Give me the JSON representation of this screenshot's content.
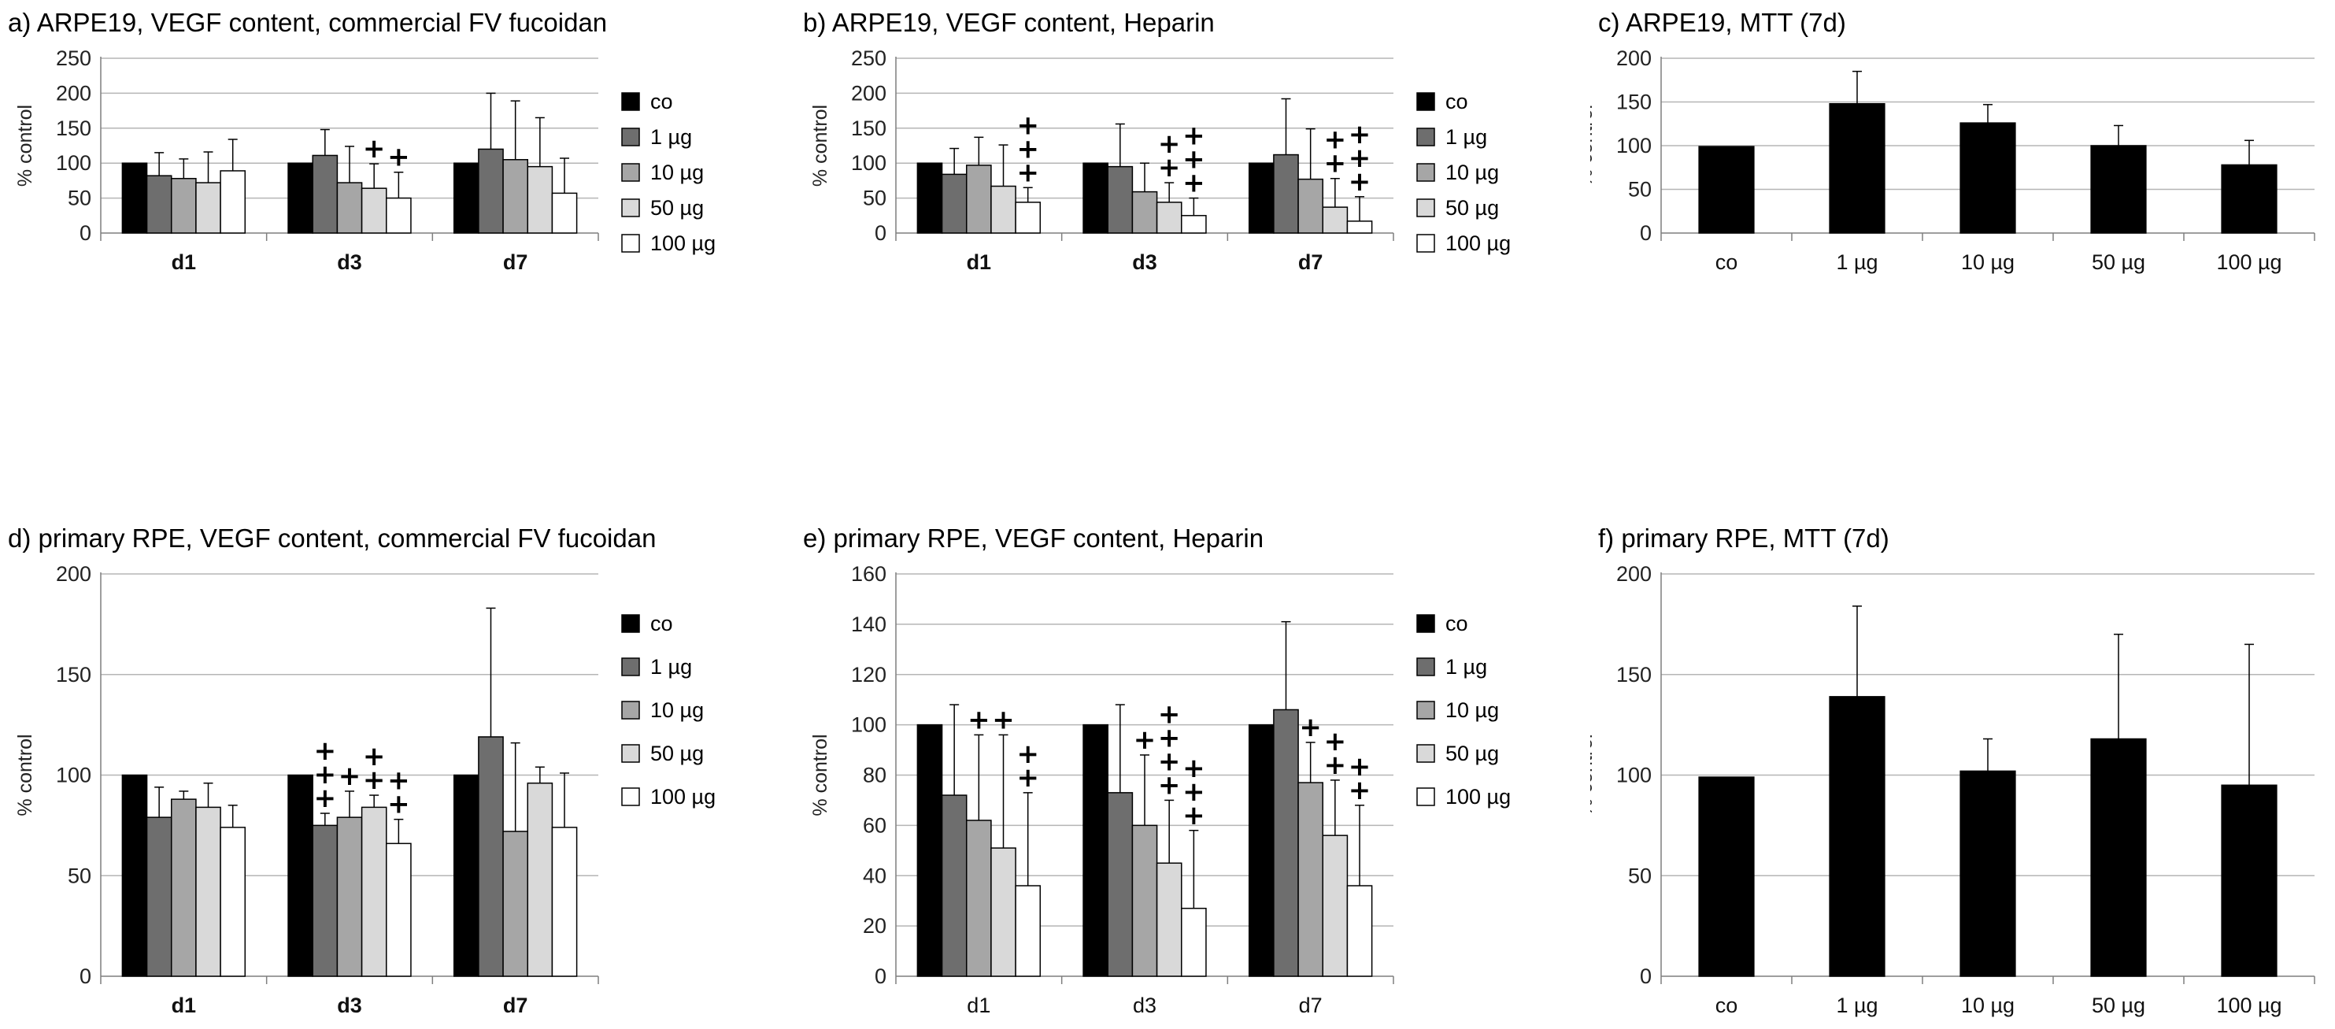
{
  "colors": {
    "co": "#000000",
    "1 µg": "#6e6e6e",
    "10 µg": "#a6a6a6",
    "50 µg": "#d9d9d9",
    "100 µg": "#ffffff",
    "grid": "#b5b5b5",
    "axis": "#7f7f7f"
  },
  "chart_data": [
    {
      "id": "a",
      "type": "bar",
      "title": "a) ARPE19, VEGF content, commercial FV fucoidan",
      "ylabel": "% control",
      "ylim": [
        0,
        250
      ],
      "yticks": [
        "0",
        "50",
        "100",
        "150",
        "200",
        "250"
      ],
      "categories": [
        "d1",
        "d3",
        "d7"
      ],
      "category_bold": true,
      "legend": [
        "co",
        "1 µg",
        "10 µg",
        "50 µg",
        "100 µg"
      ],
      "series": [
        {
          "name": "co",
          "values": [
            100,
            100,
            100
          ],
          "errors": [
            0,
            0,
            0
          ]
        },
        {
          "name": "1 µg",
          "values": [
            82,
            111,
            120
          ],
          "errors": [
            33,
            37,
            80
          ]
        },
        {
          "name": "10 µg",
          "values": [
            78,
            72,
            105
          ],
          "errors": [
            28,
            52,
            84
          ]
        },
        {
          "name": "50 µg",
          "values": [
            72,
            64,
            95
          ],
          "errors": [
            44,
            35,
            70
          ]
        },
        {
          "name": "100 µg",
          "values": [
            89,
            50,
            57
          ],
          "errors": [
            45,
            37,
            50
          ]
        }
      ],
      "annotations": [
        {
          "category": 1,
          "series": 3,
          "text": [
            "+"
          ]
        },
        {
          "category": 1,
          "series": 4,
          "text": [
            "+"
          ]
        }
      ]
    },
    {
      "id": "b",
      "type": "bar",
      "title": "b) ARPE19, VEGF content, Heparin",
      "ylabel": "% control",
      "ylim": [
        0,
        250
      ],
      "yticks": [
        "0",
        "50",
        "100",
        "150",
        "200",
        "250"
      ],
      "categories": [
        "d1",
        "d3",
        "d7"
      ],
      "category_bold": true,
      "legend": [
        "co",
        "1 µg",
        "10 µg",
        "50 µg",
        "100 µg"
      ],
      "series": [
        {
          "name": "co",
          "values": [
            100,
            100,
            100
          ],
          "errors": [
            0,
            0,
            0
          ]
        },
        {
          "name": "1 µg",
          "values": [
            84,
            95,
            112
          ],
          "errors": [
            37,
            61,
            80
          ]
        },
        {
          "name": "10 µg",
          "values": [
            97,
            59,
            77
          ],
          "errors": [
            40,
            41,
            72
          ]
        },
        {
          "name": "50 µg",
          "values": [
            67,
            44,
            37
          ],
          "errors": [
            59,
            28,
            41
          ]
        },
        {
          "name": "100 µg",
          "values": [
            44,
            25,
            17
          ],
          "errors": [
            21,
            25,
            35
          ]
        }
      ],
      "annotations": [
        {
          "category": 0,
          "series": 4,
          "text": [
            "+",
            "+",
            "+"
          ]
        },
        {
          "category": 1,
          "series": 3,
          "text": [
            "+",
            "+"
          ]
        },
        {
          "category": 1,
          "series": 4,
          "text": [
            "+",
            "+",
            "+"
          ]
        },
        {
          "category": 2,
          "series": 3,
          "text": [
            "+",
            "+"
          ]
        },
        {
          "category": 2,
          "series": 4,
          "text": [
            "+",
            "+",
            "+"
          ]
        }
      ]
    },
    {
      "id": "c",
      "type": "bar",
      "title": "c) ARPE19, MTT (7d)",
      "ylabel": "% control",
      "ylim": [
        0,
        200
      ],
      "yticks": [
        "0",
        "50",
        "100",
        "150",
        "200"
      ],
      "categories": [
        "co",
        "1 µg",
        "10 µg",
        "50 µg",
        "100 µg"
      ],
      "category_bold": false,
      "legend": [],
      "series": [
        {
          "name": "MTT",
          "values": [
            99,
            148,
            126,
            100,
            78
          ],
          "errors": [
            0,
            37,
            21,
            23,
            28
          ]
        }
      ],
      "annotations": []
    },
    {
      "id": "d",
      "type": "bar",
      "title": "d) primary RPE, VEGF content, commercial FV fucoidan",
      "ylabel": "% control",
      "ylim": [
        0,
        200
      ],
      "yticks": [
        "0",
        "50",
        "100",
        "150",
        "200"
      ],
      "categories": [
        "d1",
        "d3",
        "d7"
      ],
      "category_bold": true,
      "legend": [
        "co",
        "1 µg",
        "10 µg",
        "50 µg",
        "100 µg"
      ],
      "series": [
        {
          "name": "co",
          "values": [
            100,
            100,
            100
          ],
          "errors": [
            0,
            0,
            0
          ]
        },
        {
          "name": "1 µg",
          "values": [
            79,
            75,
            119
          ],
          "errors": [
            15,
            6,
            64
          ]
        },
        {
          "name": "10 µg",
          "values": [
            88,
            79,
            72
          ],
          "errors": [
            4,
            13,
            44
          ]
        },
        {
          "name": "50 µg",
          "values": [
            84,
            84,
            96
          ],
          "errors": [
            12,
            6,
            8
          ]
        },
        {
          "name": "100 µg",
          "values": [
            74,
            66,
            74
          ],
          "errors": [
            11,
            12,
            27
          ]
        }
      ],
      "annotations": [
        {
          "category": 1,
          "series": 1,
          "text": [
            "+",
            "+",
            "+"
          ]
        },
        {
          "category": 1,
          "series": 2,
          "text": [
            "+"
          ]
        },
        {
          "category": 1,
          "series": 3,
          "text": [
            "+",
            "+"
          ]
        },
        {
          "category": 1,
          "series": 4,
          "text": [
            "+",
            "+"
          ]
        }
      ]
    },
    {
      "id": "e",
      "type": "bar",
      "title": "e) primary RPE, VEGF content, Heparin",
      "ylabel": "% control",
      "ylim": [
        0,
        160
      ],
      "yticks": [
        "0",
        "20",
        "40",
        "60",
        "80",
        "100",
        "120",
        "140",
        "160"
      ],
      "categories": [
        "d1",
        "d3",
        "d7"
      ],
      "category_bold": false,
      "legend": [
        "co",
        "1 µg",
        "10 µg",
        "50 µg",
        "100 µg"
      ],
      "series": [
        {
          "name": "co",
          "values": [
            100,
            100,
            100
          ],
          "errors": [
            0,
            0,
            0
          ]
        },
        {
          "name": "1 µg",
          "values": [
            72,
            73,
            106
          ],
          "errors": [
            36,
            35,
            35
          ]
        },
        {
          "name": "10 µg",
          "values": [
            62,
            60,
            77
          ],
          "errors": [
            34,
            28,
            16
          ]
        },
        {
          "name": "50 µg",
          "values": [
            51,
            45,
            56
          ],
          "errors": [
            45,
            25,
            22
          ]
        },
        {
          "name": "100 µg",
          "values": [
            36,
            27,
            36
          ],
          "errors": [
            37,
            31,
            32
          ]
        }
      ],
      "annotations": [
        {
          "category": 0,
          "series": 2,
          "text": [
            "+"
          ]
        },
        {
          "category": 0,
          "series": 3,
          "text": [
            "+"
          ]
        },
        {
          "category": 0,
          "series": 4,
          "text": [
            "+",
            "+"
          ]
        },
        {
          "category": 1,
          "series": 2,
          "text": [
            "+"
          ]
        },
        {
          "category": 1,
          "series": 3,
          "text": [
            "+",
            "+",
            "+",
            "+"
          ]
        },
        {
          "category": 1,
          "series": 4,
          "text": [
            "+",
            "+",
            "+"
          ]
        },
        {
          "category": 2,
          "series": 2,
          "text": [
            "+"
          ]
        },
        {
          "category": 2,
          "series": 3,
          "text": [
            "+",
            "+"
          ]
        },
        {
          "category": 2,
          "series": 4,
          "text": [
            "+",
            "+"
          ]
        }
      ]
    },
    {
      "id": "f",
      "type": "bar",
      "title": "f) primary RPE, MTT (7d)",
      "ylabel": "% control",
      "ylim": [
        0,
        200
      ],
      "yticks": [
        "0",
        "50",
        "100",
        "150",
        "200"
      ],
      "categories": [
        "co",
        "1 µg",
        "10 µg",
        "50 µg",
        "100 µg"
      ],
      "category_bold": false,
      "legend": [],
      "series": [
        {
          "name": "MTT",
          "values": [
            99,
            139,
            102,
            118,
            95
          ],
          "errors": [
            0,
            45,
            16,
            52,
            70
          ]
        }
      ],
      "annotations": []
    }
  ]
}
